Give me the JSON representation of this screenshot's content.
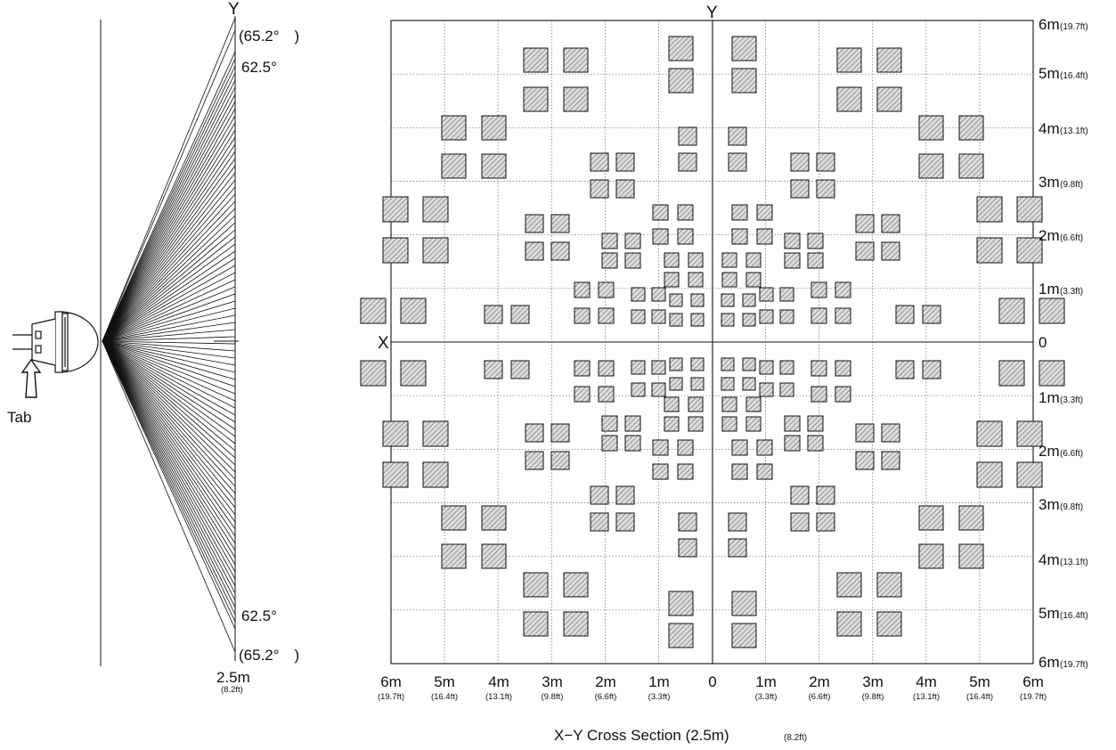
{
  "side_view": {
    "axis_label": "Y",
    "top_outer_angle": "(65.2°　)",
    "top_inner_angle": "62.5°",
    "bottom_inner_angle": "62.5°",
    "bottom_outer_angle": "(65.2°　)",
    "distance": "2.5m",
    "distance_ft": "(8.2ft)",
    "tab_label": "Tab"
  },
  "cross_section": {
    "y_axis_label": "Y",
    "x_axis_label": "X",
    "caption": "X−Y Cross Section (2.5m)",
    "caption_ft": "(8.2ft)",
    "bottom_ticks": [
      {
        "m": "6m",
        "ft": "(19.7ft)"
      },
      {
        "m": "5m",
        "ft": "(16.4ft)"
      },
      {
        "m": "4m",
        "ft": "(13.1ft)"
      },
      {
        "m": "3m",
        "ft": "(9.8ft)"
      },
      {
        "m": "2m",
        "ft": "(6.6ft)"
      },
      {
        "m": "1m",
        "ft": "(3.3ft)"
      },
      {
        "m": "0",
        "ft": ""
      },
      {
        "m": "1m",
        "ft": "(3.3ft)"
      },
      {
        "m": "2m",
        "ft": "(6.6ft)"
      },
      {
        "m": "3m",
        "ft": "(9.8ft)"
      },
      {
        "m": "4m",
        "ft": "(13.1ft)"
      },
      {
        "m": "5m",
        "ft": "(16.4ft)"
      },
      {
        "m": "6m",
        "ft": "(19.7ft)"
      }
    ],
    "right_ticks": [
      {
        "m": "6m",
        "ft": "(19.7ft)"
      },
      {
        "m": "5m",
        "ft": "(16.4ft)"
      },
      {
        "m": "4m",
        "ft": "(13.1ft)"
      },
      {
        "m": "3m",
        "ft": "(9.8ft)"
      },
      {
        "m": "2m",
        "ft": "(6.6ft)"
      },
      {
        "m": "1m",
        "ft": "(3.3ft)"
      },
      {
        "m": "0",
        "ft": ""
      },
      {
        "m": "1m",
        "ft": "(3.3ft)"
      },
      {
        "m": "2m",
        "ft": "(6.6ft)"
      },
      {
        "m": "3m",
        "ft": "(9.8ft)"
      },
      {
        "m": "4m",
        "ft": "(13.1ft)"
      },
      {
        "m": "5m",
        "ft": "(16.4ft)"
      },
      {
        "m": "6m",
        "ft": "(19.7ft)"
      }
    ]
  },
  "colors": {
    "zone_fill": "#d9d9d9",
    "line": "#111111",
    "grid": "#555555"
  }
}
